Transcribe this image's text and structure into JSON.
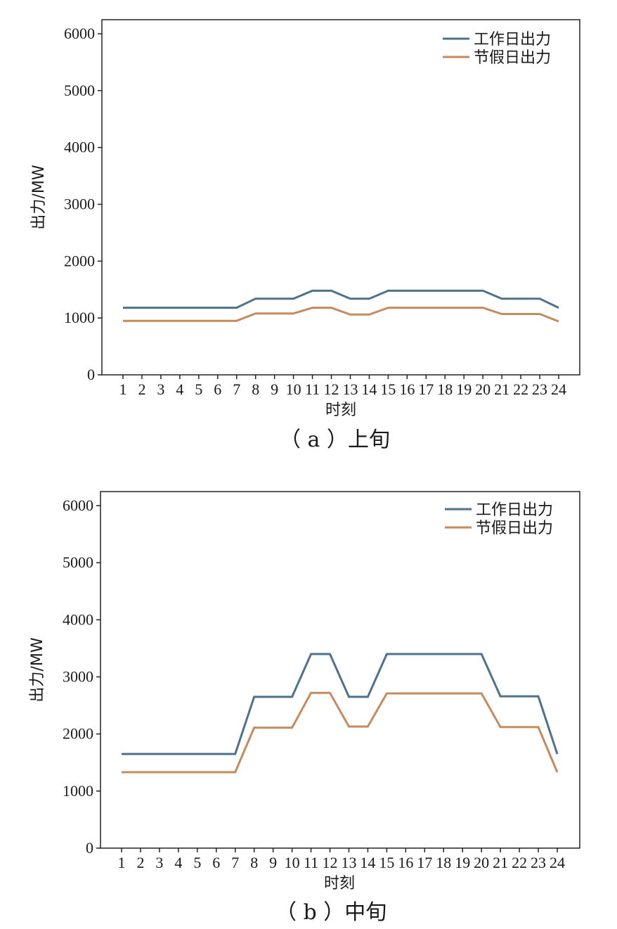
{
  "colors": {
    "workday": "#4e7289",
    "holiday": "#c68a5c",
    "axis": "#222222"
  },
  "chart_data": [
    {
      "type": "line",
      "caption": "（ a ）上旬",
      "xlabel": "时刻",
      "ylabel": "出力/MW",
      "ylim": [
        0,
        6000
      ],
      "yticks": [
        0,
        1000,
        2000,
        3000,
        4000,
        5000,
        6000
      ],
      "grid": false,
      "legend_position": "top-right",
      "x": [
        1,
        2,
        3,
        4,
        5,
        6,
        7,
        8,
        9,
        10,
        11,
        12,
        13,
        14,
        15,
        16,
        17,
        18,
        19,
        20,
        21,
        22,
        23,
        24
      ],
      "series": [
        {
          "name": "工作日出力",
          "color_key": "workday",
          "values": [
            1180,
            1180,
            1180,
            1180,
            1180,
            1180,
            1180,
            1340,
            1340,
            1340,
            1480,
            1480,
            1340,
            1340,
            1480,
            1480,
            1480,
            1480,
            1480,
            1480,
            1340,
            1340,
            1340,
            1180
          ]
        },
        {
          "name": "节假日出力",
          "color_key": "holiday",
          "values": [
            950,
            950,
            950,
            950,
            950,
            950,
            950,
            1080,
            1080,
            1080,
            1180,
            1180,
            1060,
            1060,
            1180,
            1180,
            1180,
            1180,
            1180,
            1180,
            1070,
            1070,
            1070,
            940
          ]
        }
      ]
    },
    {
      "type": "line",
      "caption": "（ b ）中旬",
      "xlabel": "时刻",
      "ylabel": "出力/MW",
      "ylim": [
        0,
        6000
      ],
      "yticks": [
        0,
        1000,
        2000,
        3000,
        4000,
        5000,
        6000
      ],
      "grid": false,
      "legend_position": "top-right",
      "x": [
        1,
        2,
        3,
        4,
        5,
        6,
        7,
        8,
        9,
        10,
        11,
        12,
        13,
        14,
        15,
        16,
        17,
        18,
        19,
        20,
        21,
        22,
        23,
        24
      ],
      "series": [
        {
          "name": "工作日出力",
          "color_key": "workday",
          "values": [
            1650,
            1650,
            1650,
            1650,
            1650,
            1650,
            1650,
            2650,
            2650,
            2650,
            3400,
            3400,
            2650,
            2650,
            3400,
            3400,
            3400,
            3400,
            3400,
            3400,
            2660,
            2660,
            2660,
            1650
          ]
        },
        {
          "name": "节假日出力",
          "color_key": "holiday",
          "values": [
            1330,
            1330,
            1330,
            1330,
            1330,
            1330,
            1330,
            2110,
            2110,
            2110,
            2720,
            2720,
            2130,
            2130,
            2710,
            2710,
            2710,
            2710,
            2710,
            2710,
            2120,
            2120,
            2120,
            1330
          ]
        }
      ]
    }
  ]
}
